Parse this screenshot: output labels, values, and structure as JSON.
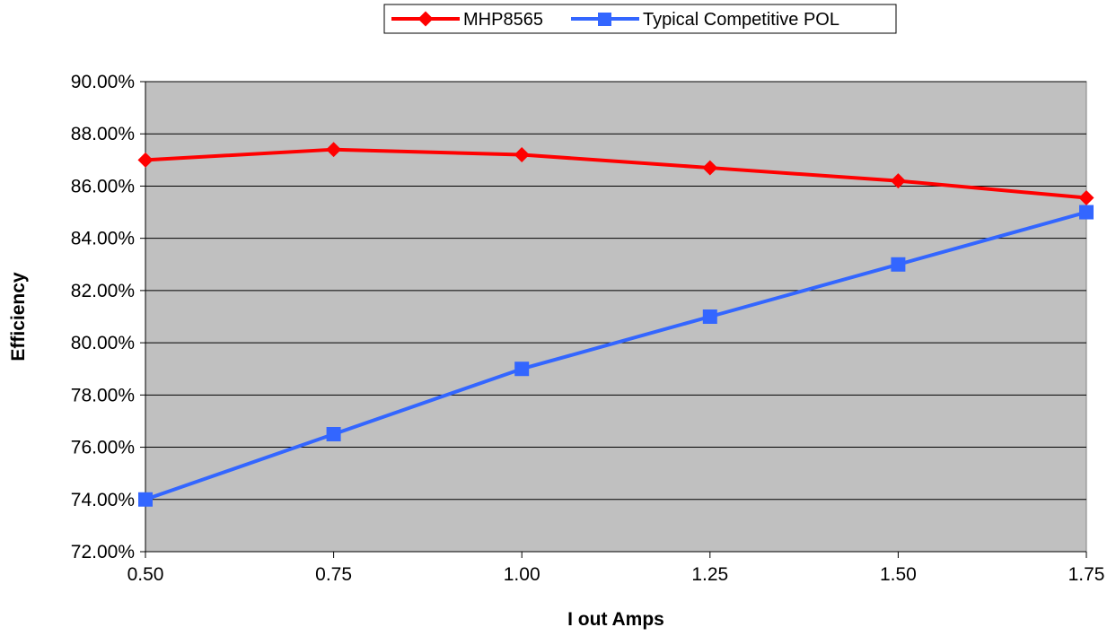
{
  "chart_data": {
    "type": "line",
    "xlabel": "I out Amps",
    "ylabel": "Efficiency",
    "x": [
      0.5,
      0.75,
      1.0,
      1.25,
      1.5,
      1.75
    ],
    "x_tick_labels": [
      "0.50",
      "0.75",
      "1.00",
      "1.25",
      "1.50",
      "1.75"
    ],
    "xlim": [
      0.5,
      1.75
    ],
    "ylim": [
      72,
      90
    ],
    "y_ticks": [
      72,
      74,
      76,
      78,
      80,
      82,
      84,
      86,
      88,
      90
    ],
    "y_tick_labels": [
      "72.00%",
      "74.00%",
      "76.00%",
      "78.00%",
      "80.00%",
      "82.00%",
      "84.00%",
      "86.00%",
      "88.00%",
      "90.00%"
    ],
    "grid": "horizontal",
    "plot_background": "#c0c0c0",
    "legend_position": "top-center",
    "series": [
      {
        "name": "MHP8565",
        "color": "#ff0000",
        "marker": "diamond",
        "values": [
          87.0,
          87.4,
          87.2,
          86.7,
          86.2,
          85.55
        ]
      },
      {
        "name": "Typical Competitive POL",
        "color": "#3366ff",
        "marker": "square",
        "values": [
          74.0,
          76.5,
          79.0,
          81.0,
          83.0,
          85.0
        ]
      }
    ]
  }
}
